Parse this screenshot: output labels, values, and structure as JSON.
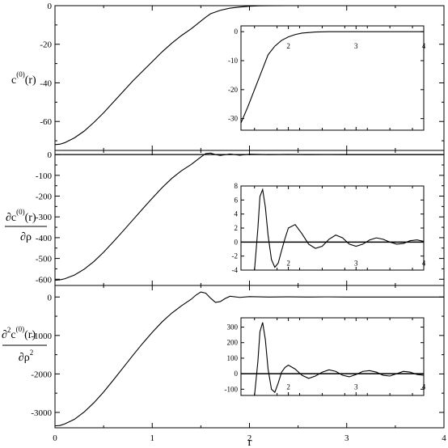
{
  "figure": {
    "xlabel": "r"
  },
  "chart_data": [
    {
      "type": "line",
      "panel": "top",
      "ylabel": {
        "pre": "c",
        "sup": "(0)",
        "post": "(r)"
      },
      "xlim": [
        0,
        4
      ],
      "ylim": [
        -75,
        0
      ],
      "xticks": [
        0,
        1,
        2,
        3,
        4
      ],
      "yticks": [
        0,
        -20,
        -40,
        -60
      ],
      "x": [
        0,
        0.05,
        0.1,
        0.2,
        0.3,
        0.4,
        0.5,
        0.6,
        0.7,
        0.8,
        0.9,
        1.0,
        1.1,
        1.2,
        1.3,
        1.4,
        1.5,
        1.55,
        1.6,
        1.7,
        1.8,
        1.9,
        2.0,
        2.1,
        2.2,
        2.4,
        2.6,
        2.8,
        3.0,
        3.5,
        4.0
      ],
      "y": [
        -72,
        -71.8,
        -71,
        -68.5,
        -65,
        -60.5,
        -55.5,
        -50,
        -44.5,
        -39,
        -34,
        -29,
        -24,
        -19.5,
        -15.5,
        -12,
        -8,
        -6,
        -4.2,
        -2.4,
        -1.3,
        -0.7,
        -0.3,
        -0.1,
        -0.05,
        0,
        0,
        0,
        0,
        0,
        0
      ],
      "inset": {
        "xlim": [
          1.3,
          4
        ],
        "ylim": [
          -34,
          2
        ],
        "xticks": [
          2,
          3,
          4
        ],
        "yticks": [
          0,
          -10,
          -20,
          -30
        ],
        "x": [
          1.3,
          1.4,
          1.5,
          1.6,
          1.7,
          1.8,
          1.9,
          2.0,
          2.1,
          2.2,
          2.4,
          2.6,
          2.8,
          3.0,
          3.5,
          4.0
        ],
        "y": [
          -31.5,
          -26,
          -20,
          -14,
          -8,
          -5,
          -3,
          -1.8,
          -1,
          -0.5,
          -0.1,
          0,
          0,
          0,
          0,
          0
        ]
      }
    },
    {
      "type": "line",
      "panel": "middle",
      "ylabel": {
        "pre": "∂c",
        "sup": "(0)",
        "post": "(r)",
        "denominator": "∂ρ"
      },
      "xlim": [
        0,
        4
      ],
      "ylim": [
        -630,
        20
      ],
      "xticks": [
        0,
        1,
        2,
        3,
        4
      ],
      "yticks": [
        0,
        -100,
        -200,
        -300,
        -400,
        -500,
        -600
      ],
      "x": [
        0,
        0.05,
        0.1,
        0.2,
        0.3,
        0.4,
        0.5,
        0.6,
        0.7,
        0.8,
        0.9,
        1.0,
        1.1,
        1.2,
        1.3,
        1.4,
        1.5,
        1.55,
        1.6,
        1.65,
        1.7,
        1.8,
        1.9,
        2.0,
        2.2,
        2.4,
        2.6,
        2.8,
        3.0,
        3.5,
        4.0
      ],
      "y": [
        -605,
        -603,
        -598,
        -580,
        -552,
        -515,
        -470,
        -420,
        -368,
        -315,
        -262,
        -210,
        -160,
        -115,
        -78,
        -48,
        -12,
        5,
        7,
        0,
        -4,
        3,
        -3,
        2,
        0,
        1,
        0,
        0.5,
        0,
        0,
        0
      ],
      "baseline": 0,
      "inset": {
        "xlim": [
          1.3,
          4
        ],
        "ylim": [
          -4,
          8
        ],
        "xticks": [
          2,
          3,
          4
        ],
        "yticks": [
          8,
          6,
          4,
          2,
          0,
          -2,
          -4
        ],
        "x": [
          1.5,
          1.55,
          1.58,
          1.62,
          1.66,
          1.7,
          1.75,
          1.8,
          1.85,
          1.9,
          1.95,
          2.0,
          2.1,
          2.2,
          2.3,
          2.4,
          2.5,
          2.6,
          2.7,
          2.8,
          2.9,
          3.0,
          3.1,
          3.2,
          3.3,
          3.4,
          3.5,
          3.6,
          3.7,
          3.8,
          3.9,
          4.0
        ],
        "y": [
          -4,
          2,
          6.5,
          7.5,
          5,
          1,
          -2.5,
          -3.6,
          -3,
          -1.2,
          0.5,
          2,
          2.5,
          1.2,
          -0.3,
          -0.9,
          -0.6,
          0.4,
          1,
          0.6,
          -0.3,
          -0.6,
          -0.3,
          0.3,
          0.6,
          0.4,
          0,
          -0.3,
          -0.2,
          0.2,
          0.3,
          0.1
        ],
        "baseline": 0
      }
    },
    {
      "type": "line",
      "panel": "bottom",
      "ylabel": {
        "pre": "∂",
        "presup": "2",
        "mid": "c",
        "sup": "(0)",
        "post": "(r)",
        "denominator": "∂ρ",
        "densup": "2"
      },
      "xlim": [
        0,
        4
      ],
      "ylim": [
        -3400,
        300
      ],
      "xticks": [
        0,
        1,
        2,
        3,
        4
      ],
      "xticklabels": [
        "0",
        "1",
        "2",
        "3",
        "4"
      ],
      "yticks": [
        0,
        -1000,
        -2000,
        -3000
      ],
      "x": [
        0,
        0.05,
        0.1,
        0.2,
        0.3,
        0.4,
        0.5,
        0.6,
        0.7,
        0.8,
        0.9,
        1.0,
        1.1,
        1.2,
        1.3,
        1.4,
        1.45,
        1.5,
        1.55,
        1.6,
        1.65,
        1.7,
        1.75,
        1.8,
        1.9,
        2.0,
        2.2,
        2.4,
        2.6,
        2.8,
        3.0,
        3.5,
        4.0
      ],
      "y": [
        -3350,
        -3340,
        -3300,
        -3180,
        -2990,
        -2750,
        -2470,
        -2160,
        -1840,
        -1520,
        -1210,
        -920,
        -650,
        -420,
        -230,
        -60,
        50,
        130,
        100,
        -30,
        -140,
        -120,
        -40,
        20,
        -10,
        10,
        0,
        5,
        0,
        3,
        0,
        0,
        0
      ],
      "inset": {
        "xlim": [
          1.3,
          4
        ],
        "ylim": [
          -140,
          360
        ],
        "xticks": [
          2,
          3,
          4
        ],
        "yticks": [
          300,
          200,
          100,
          0,
          -100
        ],
        "x": [
          1.5,
          1.55,
          1.58,
          1.62,
          1.66,
          1.7,
          1.75,
          1.8,
          1.85,
          1.9,
          1.95,
          2.0,
          2.1,
          2.2,
          2.3,
          2.4,
          2.5,
          2.6,
          2.7,
          2.8,
          2.9,
          3.0,
          3.1,
          3.2,
          3.3,
          3.4,
          3.5,
          3.6,
          3.7,
          3.8,
          3.9,
          4.0
        ],
        "y": [
          -140,
          80,
          270,
          330,
          220,
          30,
          -100,
          -120,
          -60,
          10,
          40,
          55,
          30,
          -10,
          -30,
          -15,
          10,
          25,
          15,
          -10,
          -20,
          -5,
          15,
          20,
          10,
          -10,
          -15,
          0,
          15,
          10,
          -5,
          -10
        ],
        "baseline": 0
      }
    }
  ]
}
